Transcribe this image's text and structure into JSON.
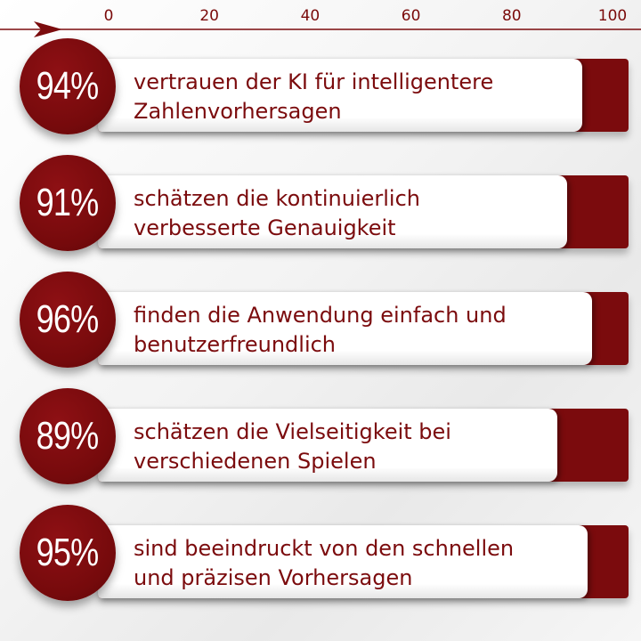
{
  "chart_data": {
    "type": "bar",
    "orientation": "horizontal",
    "xlim": [
      0,
      100
    ],
    "x_ticks": [
      "0",
      "20",
      "40",
      "60",
      "80",
      "100"
    ],
    "items": [
      {
        "value": 94,
        "value_label": "94%",
        "text": "vertrauen der KI für intelligentere\nZahlenvorhersagen"
      },
      {
        "value": 91,
        "value_label": "91%",
        "text": "schätzen die kontinuierlich\nverbesserte Genauigkeit"
      },
      {
        "value": 96,
        "value_label": "96%",
        "text": "finden die Anwendung einfach und\nbenutzerfreundlich"
      },
      {
        "value": 89,
        "value_label": "89%",
        "text": "schätzen die Vielseitigkeit bei\nverschiedenen Spielen"
      },
      {
        "value": 95,
        "value_label": "95%",
        "text": "sind beeindruckt von den schnellen\nund präzisen Vorhersagen"
      }
    ],
    "colors": {
      "accent": "#7b0b0d",
      "bar_fill": "#ffffff"
    }
  }
}
